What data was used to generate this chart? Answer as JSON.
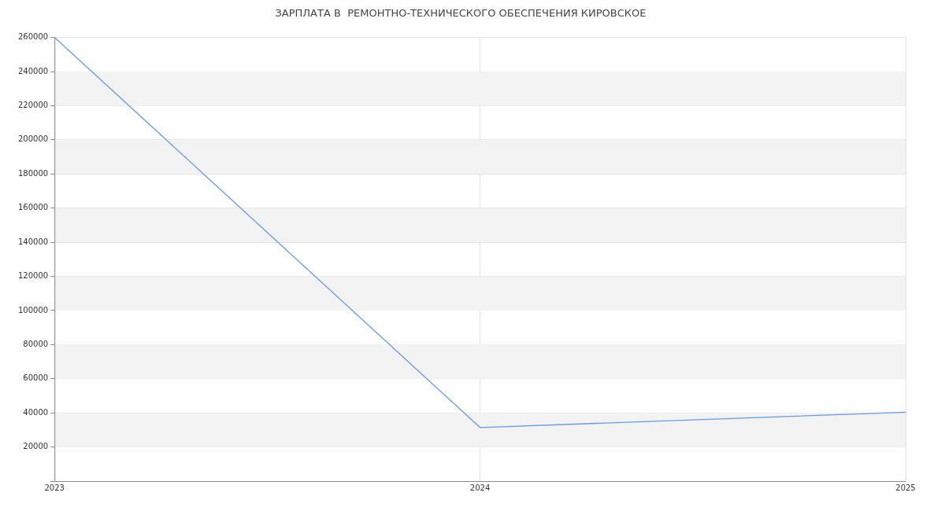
{
  "chart_data": {
    "type": "line",
    "title": "ЗАРПЛАТА В  РЕМОНТНО-ТЕХНИЧЕСКОГО ОБЕСПЕЧЕНИЯ КИРОВСКОЕ",
    "x": [
      2023,
      2024,
      2025
    ],
    "series": [
      {
        "color": "#6699ee",
        "values": [
          260000,
          31400,
          40400
        ]
      }
    ],
    "xlim": [
      2023,
      2025
    ],
    "xticks": [
      2023,
      2024,
      2025
    ],
    "ylim": [
      0,
      260000
    ],
    "yticks": [
      {
        "value": 0,
        "label": null
      },
      20000,
      40000,
      60000,
      80000,
      100000,
      120000,
      140000,
      160000,
      180000,
      200000,
      220000,
      240000,
      260000
    ],
    "grid": true,
    "legend": false,
    "marker": "none",
    "line_style": "solid"
  }
}
